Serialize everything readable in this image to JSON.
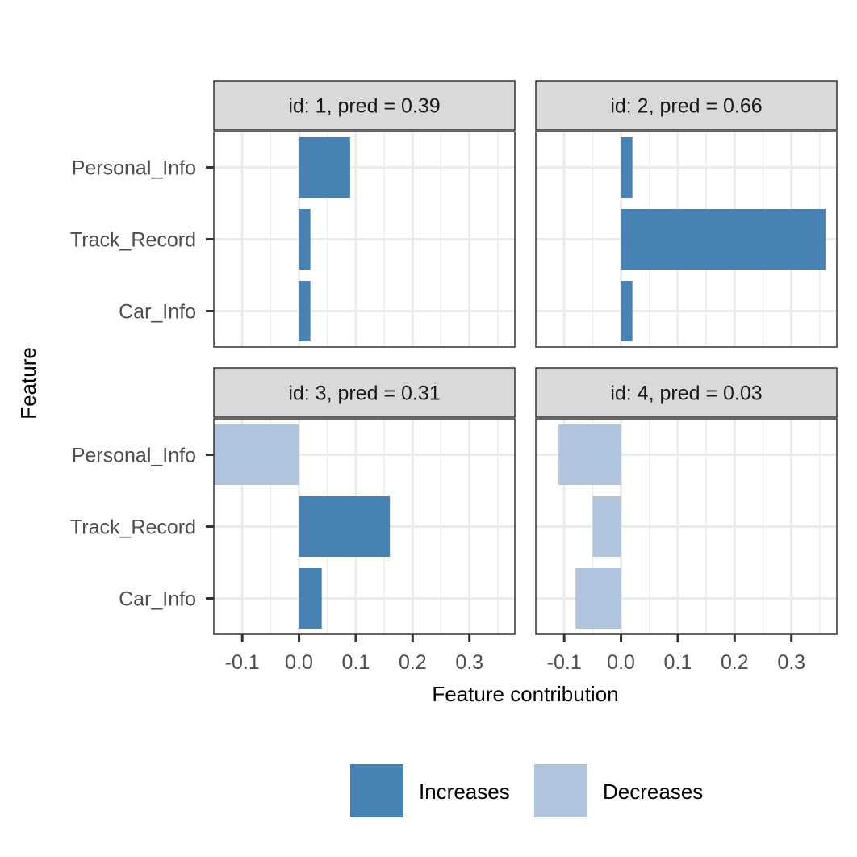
{
  "chart_data": {
    "type": "bar",
    "orientation": "horizontal",
    "xlabel": "Feature contribution",
    "ylabel": "Feature",
    "xlim": [
      -0.15,
      0.38
    ],
    "x_ticks": [
      -0.1,
      0.0,
      0.1,
      0.2,
      0.3
    ],
    "x_tick_labels": [
      "-0.1",
      "0.0",
      "0.1",
      "0.2",
      "0.3"
    ],
    "categories": [
      "Personal_Info",
      "Track_Record",
      "Car_Info"
    ],
    "grid": true,
    "legend_position": "bottom",
    "legend": [
      {
        "label": "Increases",
        "color": "#4682b4"
      },
      {
        "label": "Decreases",
        "color": "#b0c4de"
      }
    ],
    "colors": {
      "increases": "#4682b4",
      "decreases": "#b0c4de",
      "strip_bg": "#d9d9d9",
      "grid": "#ebebeb"
    },
    "panels": [
      {
        "title": "id: 1, pred = 0.39",
        "values": [
          0.09,
          0.02,
          0.02
        ]
      },
      {
        "title": "id: 2, pred = 0.66",
        "values": [
          0.02,
          0.36,
          0.02
        ]
      },
      {
        "title": "id: 3, pred = 0.31",
        "values": [
          -0.15,
          0.16,
          0.04
        ]
      },
      {
        "title": "id: 4, pred = 0.03",
        "values": [
          -0.11,
          -0.05,
          -0.08
        ]
      }
    ]
  }
}
